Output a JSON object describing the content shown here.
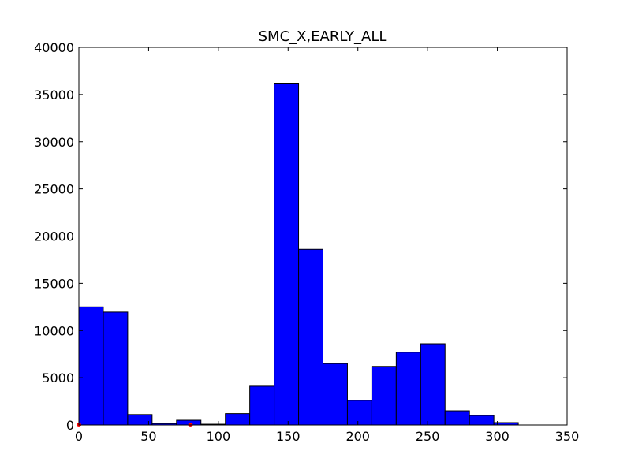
{
  "chart_data": {
    "type": "bar",
    "title": "SMC_X,EARLY_ALL",
    "xlabel": "",
    "ylabel": "",
    "xlim": [
      0,
      350
    ],
    "ylim": [
      0,
      40000
    ],
    "grid": false,
    "xticks": [
      "0",
      "50",
      "100",
      "150",
      "200",
      "250",
      "300",
      "350"
    ],
    "yticks": [
      "0",
      "5000",
      "10000",
      "15000",
      "20000",
      "25000",
      "30000",
      "35000",
      "40000"
    ],
    "bar_color": "#0000ff",
    "marker_color": "#ff0000",
    "bins": [
      {
        "x0": 0,
        "x1": 17.5,
        "value": 12500
      },
      {
        "x0": 17.5,
        "x1": 35,
        "value": 11950
      },
      {
        "x0": 35,
        "x1": 52.5,
        "value": 1100
      },
      {
        "x0": 52.5,
        "x1": 70,
        "value": 150
      },
      {
        "x0": 70,
        "x1": 87.5,
        "value": 500
      },
      {
        "x0": 87.5,
        "x1": 105,
        "value": 80
      },
      {
        "x0": 105,
        "x1": 122.5,
        "value": 1200
      },
      {
        "x0": 122.5,
        "x1": 140,
        "value": 4100
      },
      {
        "x0": 140,
        "x1": 157.5,
        "value": 36200
      },
      {
        "x0": 157.5,
        "x1": 175,
        "value": 18600
      },
      {
        "x0": 175,
        "x1": 192.5,
        "value": 6500
      },
      {
        "x0": 192.5,
        "x1": 210,
        "value": 2600
      },
      {
        "x0": 210,
        "x1": 227.5,
        "value": 6200
      },
      {
        "x0": 227.5,
        "x1": 245,
        "value": 7700
      },
      {
        "x0": 245,
        "x1": 262.5,
        "value": 8600
      },
      {
        "x0": 262.5,
        "x1": 280,
        "value": 1500
      },
      {
        "x0": 280,
        "x1": 297.5,
        "value": 1000
      },
      {
        "x0": 297.5,
        "x1": 315,
        "value": 250
      }
    ],
    "markers": [
      {
        "x": 0,
        "y": 0
      },
      {
        "x": 80,
        "y": 0
      }
    ]
  }
}
